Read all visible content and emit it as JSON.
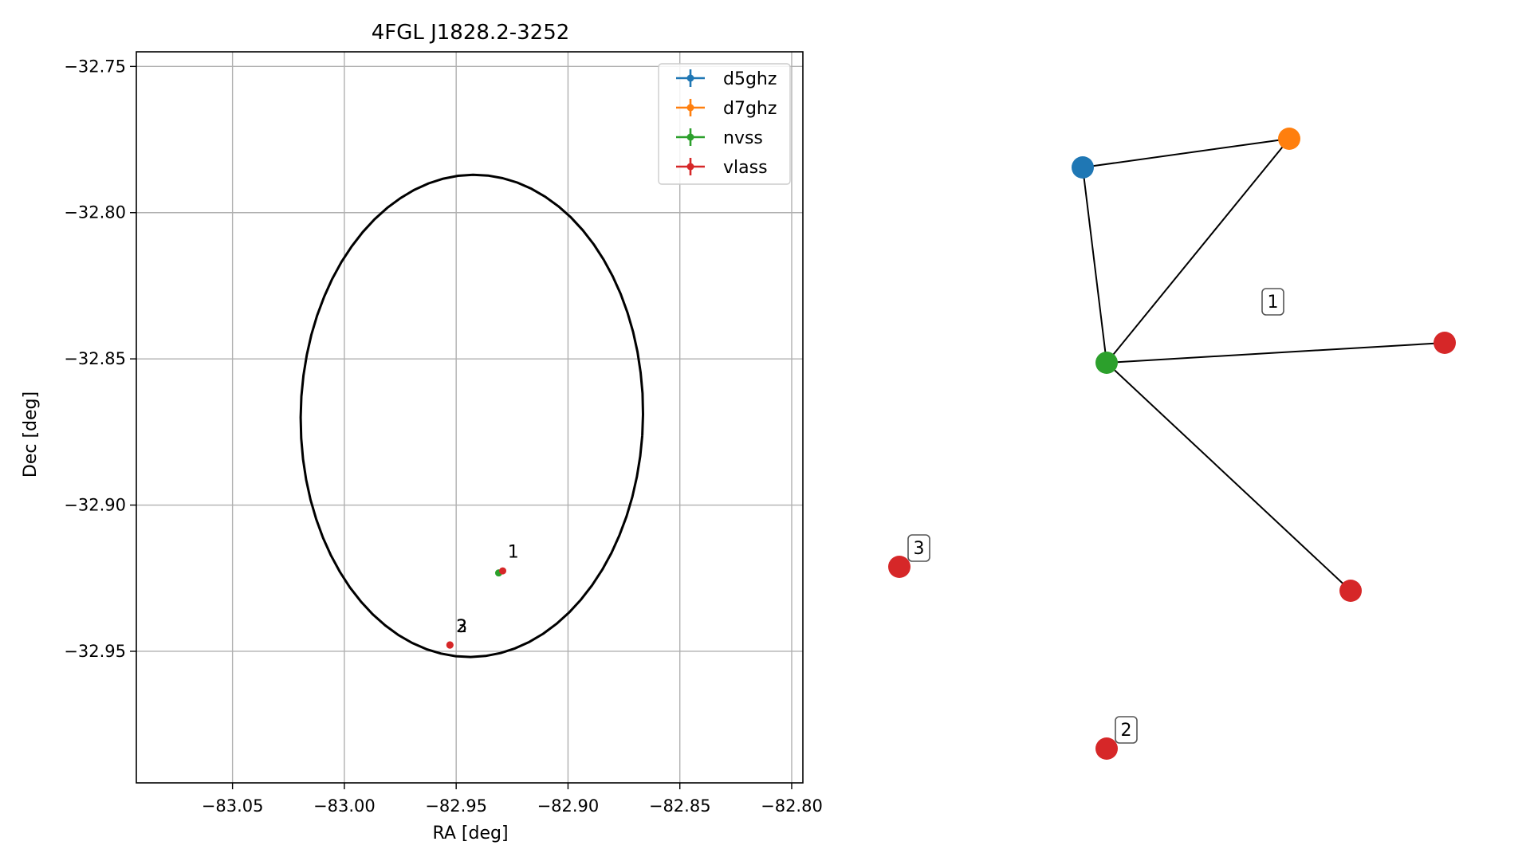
{
  "chart_data": [
    {
      "type": "scatter",
      "title": "4FGL J1828.2-3252",
      "xlabel": "RA [deg]",
      "ylabel": "Dec [deg]",
      "xlim": [
        -83.093,
        -82.795
      ],
      "ylim": [
        -32.995,
        -32.745
      ],
      "xticks": [
        -83.05,
        -83.0,
        -82.95,
        -82.9,
        -82.85,
        -82.8
      ],
      "xtick_labels": [
        "−83.05",
        "−83.00",
        "−82.95",
        "−82.90",
        "−82.85",
        "−82.80"
      ],
      "yticks": [
        -32.75,
        -32.8,
        -32.85,
        -32.9,
        -32.95
      ],
      "ytick_labels": [
        "−32.75",
        "−32.80",
        "−32.85",
        "−32.90",
        "−32.95"
      ],
      "grid": true,
      "legend_position": "top-right",
      "series": [
        {
          "name": "d5ghz",
          "color": "#1f77b4",
          "points": []
        },
        {
          "name": "d7ghz",
          "color": "#ff7f0e",
          "points": []
        },
        {
          "name": "nvss",
          "color": "#2ca02c",
          "points": [
            {
              "x": -82.931,
              "y": -32.9232
            }
          ]
        },
        {
          "name": "vlass",
          "color": "#d62728",
          "points": [
            {
              "x": -82.9292,
              "y": -32.9225
            },
            {
              "x": -82.9528,
              "y": -32.9478
            },
            {
              "x": -82.9528,
              "y": -32.9479
            }
          ]
        }
      ],
      "ellipse": {
        "center_x": -82.943,
        "center_y": -32.8695,
        "semi_axis_ra": 0.0765,
        "semi_axis_dec": 0.0825,
        "rotation_deg": -5,
        "color": "#000000"
      },
      "annotations": [
        {
          "text": "1",
          "x": -82.927,
          "y": -32.918
        },
        {
          "text": "2",
          "x": -82.95,
          "y": -32.9435
        },
        {
          "text": "3",
          "x": -82.95,
          "y": -32.9435
        }
      ]
    },
    {
      "type": "diagram",
      "nodes": [
        {
          "id": "d5ghz",
          "color": "#1f77b4"
        },
        {
          "id": "d7ghz",
          "color": "#ff7f0e"
        },
        {
          "id": "nvss",
          "color": "#2ca02c"
        },
        {
          "id": "vlass-a",
          "color": "#d62728"
        },
        {
          "id": "vlass-b",
          "color": "#d62728"
        },
        {
          "id": "vlass-c",
          "color": "#d62728"
        },
        {
          "id": "vlass-d",
          "color": "#d62728"
        }
      ],
      "edges": [
        [
          "d5ghz",
          "d7ghz"
        ],
        [
          "d5ghz",
          "nvss"
        ],
        [
          "d7ghz",
          "nvss"
        ],
        [
          "nvss",
          "vlass-a"
        ],
        [
          "nvss",
          "vlass-b"
        ]
      ],
      "labels": [
        {
          "text": "1"
        },
        {
          "text": "3"
        },
        {
          "text": "2"
        }
      ]
    }
  ]
}
